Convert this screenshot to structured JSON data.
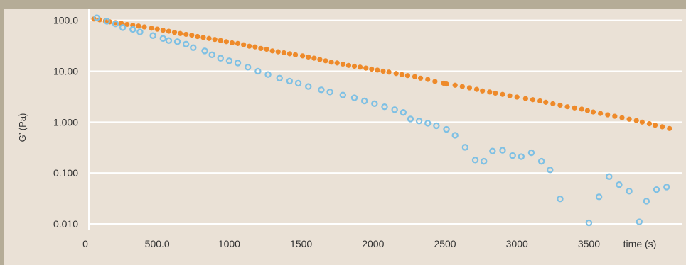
{
  "chart_data": {
    "type": "scatter",
    "xlabel": "time (s)",
    "ylabel": "G’ (Pa)",
    "yscale": "log",
    "xlim": [
      0,
      4150
    ],
    "ylim": [
      0.0075,
      165
    ],
    "grid": "horizontal",
    "x_ticks": [
      {
        "value": 0,
        "label": "0"
      },
      {
        "value": 500,
        "label": "500.0"
      },
      {
        "value": 1000,
        "label": "1000"
      },
      {
        "value": 1500,
        "label": "1500"
      },
      {
        "value": 2000,
        "label": "2000"
      },
      {
        "value": 2500,
        "label": "2500"
      },
      {
        "value": 3000,
        "label": "3000"
      },
      {
        "value": 3500,
        "label": "3500"
      }
    ],
    "y_ticks": [
      {
        "value": 100,
        "label": "100.0"
      },
      {
        "value": 10,
        "label": "10.00"
      },
      {
        "value": 1,
        "label": "1.000"
      },
      {
        "value": 0.1,
        "label": "0.100"
      },
      {
        "value": 0.01,
        "label": "0.010"
      }
    ],
    "series": [
      {
        "marker": "filled-circle",
        "color": "#ee8a2a",
        "points": [
          [
            60,
            106
          ],
          [
            100,
            102
          ],
          [
            140,
            97
          ],
          [
            170,
            93
          ],
          [
            210,
            90
          ],
          [
            250,
            87
          ],
          [
            290,
            83
          ],
          [
            330,
            80
          ],
          [
            370,
            77
          ],
          [
            410,
            74
          ],
          [
            460,
            70
          ],
          [
            500,
            67
          ],
          [
            540,
            64
          ],
          [
            580,
            61
          ],
          [
            620,
            58
          ],
          [
            660,
            55
          ],
          [
            700,
            53
          ],
          [
            740,
            51
          ],
          [
            780,
            48
          ],
          [
            820,
            46
          ],
          [
            860,
            44
          ],
          [
            900,
            42
          ],
          [
            940,
            40
          ],
          [
            980,
            38
          ],
          [
            1020,
            36
          ],
          [
            1060,
            35
          ],
          [
            1100,
            33
          ],
          [
            1140,
            31
          ],
          [
            1180,
            30
          ],
          [
            1220,
            28
          ],
          [
            1260,
            27
          ],
          [
            1300,
            25
          ],
          [
            1340,
            24
          ],
          [
            1380,
            23
          ],
          [
            1420,
            22
          ],
          [
            1460,
            21
          ],
          [
            1510,
            20
          ],
          [
            1550,
            19
          ],
          [
            1590,
            18
          ],
          [
            1630,
            17
          ],
          [
            1670,
            16
          ],
          [
            1710,
            15
          ],
          [
            1750,
            14.5
          ],
          [
            1790,
            13.8
          ],
          [
            1830,
            13
          ],
          [
            1870,
            12.5
          ],
          [
            1910,
            12
          ],
          [
            1950,
            11.5
          ],
          [
            1990,
            11
          ],
          [
            2030,
            10.5
          ],
          [
            2070,
            10
          ],
          [
            2110,
            9.6
          ],
          [
            2160,
            9
          ],
          [
            2200,
            8.6
          ],
          [
            2240,
            8.2
          ],
          [
            2290,
            7.8
          ],
          [
            2330,
            7.3
          ],
          [
            2380,
            6.9
          ],
          [
            2430,
            6.3
          ],
          [
            2490,
            5.8
          ],
          [
            2510,
            5.6
          ],
          [
            2570,
            5.3
          ],
          [
            2620,
            5.0
          ],
          [
            2670,
            4.7
          ],
          [
            2720,
            4.4
          ],
          [
            2760,
            4.1
          ],
          [
            2810,
            3.9
          ],
          [
            2850,
            3.7
          ],
          [
            2900,
            3.5
          ],
          [
            2950,
            3.3
          ],
          [
            3000,
            3.1
          ],
          [
            3060,
            2.9
          ],
          [
            3110,
            2.75
          ],
          [
            3160,
            2.6
          ],
          [
            3200,
            2.45
          ],
          [
            3250,
            2.3
          ],
          [
            3300,
            2.15
          ],
          [
            3350,
            2.0
          ],
          [
            3400,
            1.9
          ],
          [
            3450,
            1.8
          ],
          [
            3490,
            1.68
          ],
          [
            3530,
            1.58
          ],
          [
            3580,
            1.48
          ],
          [
            3630,
            1.39
          ],
          [
            3680,
            1.3
          ],
          [
            3730,
            1.22
          ],
          [
            3780,
            1.14
          ],
          [
            3830,
            1.07
          ],
          [
            3870,
            1.0
          ],
          [
            3920,
            0.93
          ],
          [
            3960,
            0.87
          ],
          [
            4010,
            0.81
          ],
          [
            4060,
            0.75
          ]
        ]
      },
      {
        "marker": "open-circle",
        "color": "#7ec0e4",
        "points": [
          [
            80,
            112
          ],
          [
            150,
            96
          ],
          [
            210,
            85
          ],
          [
            260,
            72
          ],
          [
            330,
            66
          ],
          [
            380,
            59
          ],
          [
            470,
            50
          ],
          [
            540,
            44
          ],
          [
            580,
            40
          ],
          [
            640,
            38
          ],
          [
            700,
            34
          ],
          [
            750,
            29
          ],
          [
            830,
            25
          ],
          [
            880,
            21
          ],
          [
            940,
            18
          ],
          [
            1000,
            16
          ],
          [
            1060,
            14.5
          ],
          [
            1130,
            12
          ],
          [
            1200,
            10
          ],
          [
            1270,
            8.6
          ],
          [
            1350,
            7.3
          ],
          [
            1420,
            6.4
          ],
          [
            1480,
            5.8
          ],
          [
            1550,
            5.0
          ],
          [
            1640,
            4.3
          ],
          [
            1700,
            3.9
          ],
          [
            1790,
            3.4
          ],
          [
            1870,
            3.0
          ],
          [
            1940,
            2.6
          ],
          [
            2010,
            2.3
          ],
          [
            2080,
            2.0
          ],
          [
            2150,
            1.75
          ],
          [
            2210,
            1.55
          ],
          [
            2260,
            1.15
          ],
          [
            2320,
            1.05
          ],
          [
            2380,
            0.95
          ],
          [
            2440,
            0.85
          ],
          [
            2510,
            0.72
          ],
          [
            2570,
            0.55
          ],
          [
            2640,
            0.32
          ],
          [
            2710,
            0.18
          ],
          [
            2770,
            0.17
          ],
          [
            2830,
            0.27
          ],
          [
            2900,
            0.28
          ],
          [
            2970,
            0.22
          ],
          [
            3030,
            0.21
          ],
          [
            3100,
            0.25
          ],
          [
            3170,
            0.17
          ],
          [
            3230,
            0.115
          ],
          [
            3300,
            0.031
          ],
          [
            3500,
            0.0105
          ],
          [
            3570,
            0.034
          ],
          [
            3640,
            0.085
          ],
          [
            3710,
            0.059
          ],
          [
            3780,
            0.044
          ],
          [
            3850,
            0.011
          ],
          [
            3900,
            0.028
          ],
          [
            3970,
            0.047
          ],
          [
            4040,
            0.053
          ]
        ]
      }
    ]
  }
}
